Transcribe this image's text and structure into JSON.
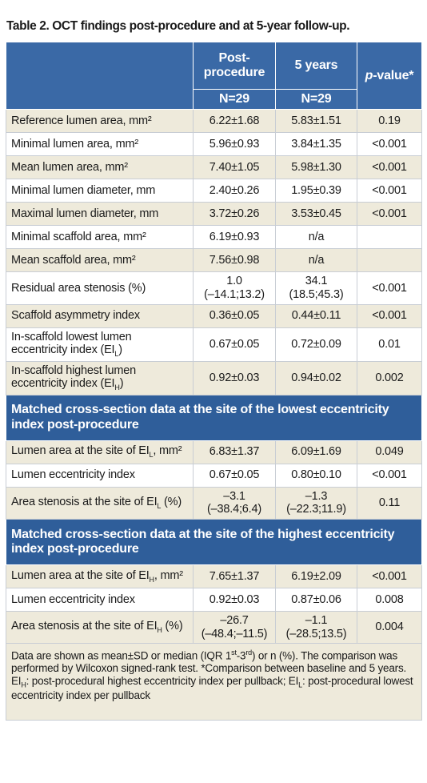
{
  "title": "Table 2. OCT findings post-procedure and at 5-year follow-up.",
  "table": {
    "header": {
      "columns": [
        "Post-procedure",
        "5 years",
        [
          {
            "i": "p"
          },
          "-value*"
        ]
      ],
      "n": [
        "N=29",
        "N=29"
      ]
    },
    "rows": [
      {
        "label": "Reference lumen area, mm²",
        "post": "6.22±1.68",
        "five": "5.83±1.51",
        "p": "0.19"
      },
      {
        "label": "Minimal lumen area, mm²",
        "post": "5.96±0.93",
        "five": "3.84±1.35",
        "p": "<0.001"
      },
      {
        "label": "Mean lumen area, mm²",
        "post": "7.40±1.05",
        "five": "5.98±1.30",
        "p": "<0.001"
      },
      {
        "label": "Minimal lumen diameter, mm",
        "post": "2.40±0.26",
        "five": "1.95±0.39",
        "p": "<0.001"
      },
      {
        "label": "Maximal lumen diameter, mm",
        "post": "3.72±0.26",
        "five": "3.53±0.45",
        "p": "<0.001"
      },
      {
        "label": "Minimal scaffold area, mm²",
        "post": "6.19±0.93",
        "five": "n/a"
      },
      {
        "label": "Mean scaffold area, mm²",
        "post": "7.56±0.98",
        "five": "n/a"
      },
      {
        "label": "Residual area stenosis (%)",
        "post": [
          "1.0",
          "(–14.1;13.2)"
        ],
        "five": [
          "34.1",
          "(18.5;45.3)"
        ],
        "p": "<0.001"
      },
      {
        "label": "Scaffold asymmetry index",
        "post": "0.36±0.05",
        "five": "0.44±0.11",
        "p": "<0.001"
      },
      {
        "label": [
          "In-scaffold lowest lumen eccentricity index (EI",
          {
            "sub": "L"
          },
          ")"
        ],
        "post": "0.67±0.05",
        "five": "0.72±0.09",
        "p": "0.01"
      },
      {
        "label": [
          "In-scaffold highest lumen eccentricity index (EI",
          {
            "sub": "H"
          },
          ")"
        ],
        "post": "0.92±0.03",
        "five": "0.94±0.02",
        "p": "0.002"
      }
    ],
    "sections": [
      {
        "heading": "Matched cross-section data at the site of the lowest eccentricity index post-procedure",
        "rows": [
          {
            "label": [
              "Lumen area at the site of EI",
              {
                "sub": "L"
              },
              ", mm²"
            ],
            "post": "6.83±1.37",
            "five": "6.09±1.69",
            "p": "0.049"
          },
          {
            "label": "Lumen eccentricity index",
            "post": "0.67±0.05",
            "five": "0.80±0.10",
            "p": "<0.001"
          },
          {
            "label": [
              "Area stenosis at the site of EI",
              {
                "sub": "L"
              },
              " (%)"
            ],
            "post": [
              "–3.1",
              "(–38.4;6.4)"
            ],
            "five": [
              "–1.3",
              "(–22.3;11.9)"
            ],
            "p": "0.11"
          }
        ]
      },
      {
        "heading": "Matched cross-section data at the site of the highest eccentricity index post-procedure",
        "rows": [
          {
            "label": [
              "Lumen area at the site of EI",
              {
                "sub": "H"
              },
              ", mm²"
            ],
            "post": "7.65±1.37",
            "five": "6.19±2.09",
            "p": "<0.001"
          },
          {
            "label": "Lumen eccentricity index",
            "post": "0.92±0.03",
            "five": "0.87±0.06",
            "p": "0.008"
          },
          {
            "label": [
              "Area stenosis at the site of EI",
              {
                "sub": "H"
              },
              " (%)"
            ],
            "post": [
              "–26.7",
              "(–48.4;–11.5)"
            ],
            "five": [
              "–1.1",
              "(–28.5;13.5)"
            ],
            "p": "0.004"
          }
        ]
      }
    ],
    "footnote": [
      "Data are shown as mean±SD or median (IQR 1",
      {
        "sup": "st"
      },
      "-3",
      {
        "sup": "rd"
      },
      ") or n (%). The comparison was performed by Wilcoxon signed-rank test. *Comparison between baseline and 5 years. EI",
      {
        "sub": "H"
      },
      ": post-procedural highest eccentricity index per pullback; EI",
      {
        "sub": "L"
      },
      ": post-procedural lowest eccentricity index per pullback"
    ]
  }
}
